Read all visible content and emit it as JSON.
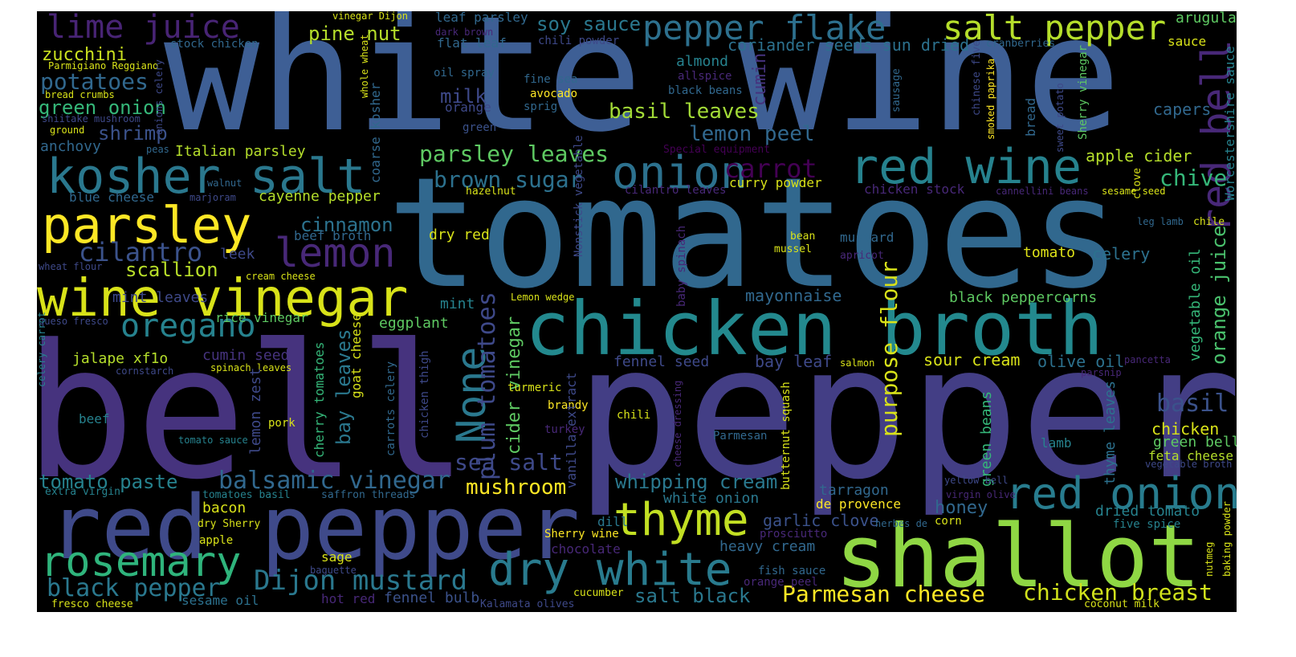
{
  "colors": {
    "background": "#000000",
    "page": "#ffffff",
    "palette": [
      "#440154",
      "#482878",
      "#3e4989",
      "#31688e",
      "#26828e",
      "#1f9e89",
      "#35b779",
      "#6ece58",
      "#b5de2b",
      "#fde725"
    ]
  },
  "words": {
    "white_wine": "white wine",
    "tomatoes": "tomatoes",
    "bell": "bell",
    "pepper": "pepper",
    "red_pepper": "red pepper",
    "chicken_broth": "chicken broth",
    "shallot": "shallot",
    "kosher_salt": "kosher salt",
    "red_wine": "red wine",
    "wine_vinegar": "wine vinegar",
    "parsley": "parsley",
    "onion": "onion",
    "red_onion": "red onion",
    "rosemary": "rosemary",
    "thyme": "thyme",
    "dry_white": "dry white",
    "pepper_flake": "pepper flake",
    "salt_pepper": "salt pepper",
    "lime_juice": "lime juice",
    "lemon": "lemon",
    "oregano": "oregano",
    "none": "None",
    "red_bell": "red bell",
    "dijon_mustard": "Dijon mustard",
    "balsamic_vinegar": "balsamic vinegar",
    "black_pepper": "black pepper",
    "parmesan_cheese": "Parmesan cheese",
    "chicken_breast": "chicken breast",
    "cilantro": "cilantro",
    "carrot": "carrot",
    "parsley_leaves": "parsley leaves",
    "brown_sugar": "brown sugar",
    "potatoes": "potatoes",
    "green_onion": "green onion",
    "shrimp": "shrimp",
    "zucchini": "zucchini",
    "basil_leaves": "basil leaves",
    "lemon_peel": "lemon peel",
    "plum_tomatoes": "plum tomatoes",
    "sea_salt": "sea salt",
    "purpose_flour": "purpose flour",
    "orange_juice": "orange juice",
    "chive": "chive",
    "basil": "basil",
    "whipping_cream": "whipping cream",
    "mushroom": "mushroom",
    "tomato_paste": "tomato paste",
    "soy_sauce": "soy sauce",
    "pine_nut": "pine nut",
    "coriander_seeds": "coriander seeds sun dried",
    "cinnamon": "cinnamon",
    "scallion": "scallion",
    "milk": "milk",
    "cumin": "cumin",
    "apple_cider": "apple cider",
    "worcestershire": "Worcestershire sauce",
    "cider_vinegar": "cider vinegar",
    "bay_leaves": "bay leaves",
    "white_onion": "white onion",
    "heavy_cream": "heavy cream",
    "garlic_clove": "garlic clove",
    "salt_black": "salt black",
    "honey": "honey",
    "capers": "capers",
    "arugula": "arugula",
    "sauce": "sauce",
    "vegetable_oil": "vegetable oil",
    "olive_oil": "olive oil",
    "sour_cream": "sour cream",
    "bay_leaf": "bay leaf",
    "mayonnaise": "mayonnaise",
    "black_peppercorns": "black peppercorns",
    "mustard": "mustard",
    "tomato": "tomato",
    "celery": "celery",
    "chicken": "chicken",
    "green_bell": "green bell",
    "feta_cheese": "feta cheese",
    "green_beans": "green beans",
    "thyme_leaves": "thyme leaves",
    "dried_tomato": "dried tomato",
    "five_spice": "five spice",
    "tarragon": "tarragon",
    "de_provence": "de provence",
    "lamb": "lamb",
    "corn": "corn",
    "bacon": "bacon",
    "dry_red": "dry red",
    "mint": "mint",
    "mint_leaves": "mint leaves",
    "rice_vinegar": "rice vinegar",
    "eggplant": "eggplant",
    "cumin_seed": "cumin seed",
    "jalapeno": "jalape xf1o",
    "italian_parsley": "Italian parsley",
    "anchovy": "anchovy",
    "cayenne_pepper": "cayenne pepper",
    "beef_broth": "beef broth",
    "leek": "leek",
    "almond": "almond",
    "fennel_seed": "fennel seed",
    "curry_powder": "curry powder",
    "chicken_stock": "chicken stock",
    "fennel_bulb": "fennel bulb",
    "hot_red": "hot red",
    "sesame_oil": "sesame oil",
    "chili_powder": "chili powder",
    "flat_leaf": "flat leaf",
    "leaf_parsley": "leaf parsley",
    "oil_spray": "oil spray",
    "fine_sea": "fine sea",
    "avocado": "avocado",
    "orange": "orange",
    "sprig": "sprig",
    "green": "green",
    "allspice": "allspice",
    "black_beans": "black beans",
    "special_equipment": "Special equipment",
    "turmeric": "turmeric",
    "brandy": "brandy",
    "turkey": "turkey",
    "lemon_wedge": "Lemon wedge",
    "vanilla_extract": "vanilla extract",
    "nonstick_vegetable": "Nonstick vegetable",
    "baby_spinach": "baby spinach",
    "cheese_dressing": "cheese dressing",
    "butternut_squash": "butternut squash",
    "parmesan": "Parmesan",
    "chili": "chili",
    "dill": "dill",
    "sherry_wine": "Sherry wine",
    "chocolate": "chocolate",
    "prosciutto": "prosciutto",
    "fish_sauce": "fish sauce",
    "orange_peel": "orange peel",
    "salmon": "salmon",
    "parsnip": "parsnip",
    "pancetta": "pancetta",
    "herbes_de": "herbes de",
    "yellow_bell": "yellow bell",
    "virgin_olive": "virgin olive",
    "vegetable_broth": "vegetable broth",
    "coconut_milk": "coconut milk",
    "nutmeg": "nutmeg",
    "baking_powder": "baking powder",
    "kalamata_olives": "Kalamata olives",
    "cucumber": "cucumber",
    "bean": "bean",
    "mussel": "mussel",
    "apricot": "apricot",
    "cilantro_leaves": "cilantro leaves",
    "hazelnut": "hazelnut",
    "cannellini_beans": "cannellini beans",
    "sesame_seed": "sesame seed",
    "leg_lamb": "leg lamb",
    "chile": "chile",
    "clove": "clove",
    "sherry_vinegar": "Sherry vinegar",
    "sweet_potato": "sweet potato",
    "bread": "bread",
    "sausage": "sausage",
    "chinese_five": "chinese five",
    "smoked_paprika": "smoked paprika",
    "cranberries": "cranberries",
    "vinegar_dijon": "vinegar Dijon",
    "dark_brown": "dark brown",
    "whole_wheat": "whole wheat",
    "stock_chicken": "stock chicken",
    "parmigiano": "Parmigiano Reggiano",
    "bread_crumbs": "bread crumbs",
    "shiitake": "shiitake mushroom",
    "ground": "ground",
    "peas": "peas",
    "onions_celery": "onions celery",
    "walnut": "walnut",
    "blue_cheese": "blue cheese",
    "marjoram": "marjoram",
    "wheat_flour": "wheat flour",
    "cream_cheese": "cream cheese",
    "queso_fresco": "queso fresco",
    "cornstarch": "cornstarch",
    "spinach_leaves": "spinach leaves",
    "celery_carrot": "celery carrot",
    "beef": "beef",
    "tomato_sauce": "tomato sauce",
    "pork": "pork",
    "lemon_zest": "lemon zest",
    "cherry_tomatoes": "cherry tomatoes",
    "goat_cheese": "goat cheese",
    "carrots_celery": "carrots celery",
    "chicken_thigh": "chicken thigh",
    "coarse_kosher": "coarse kosher",
    "extra_virgin": "extra virgin",
    "tomatoes_basil": "tomatoes basil",
    "saffron_threads": "saffron threads",
    "dry_sherry": "dry Sherry",
    "apple": "apple",
    "sage": "sage",
    "baguette": "baguette",
    "fresco_cheese": "fresco cheese"
  }
}
